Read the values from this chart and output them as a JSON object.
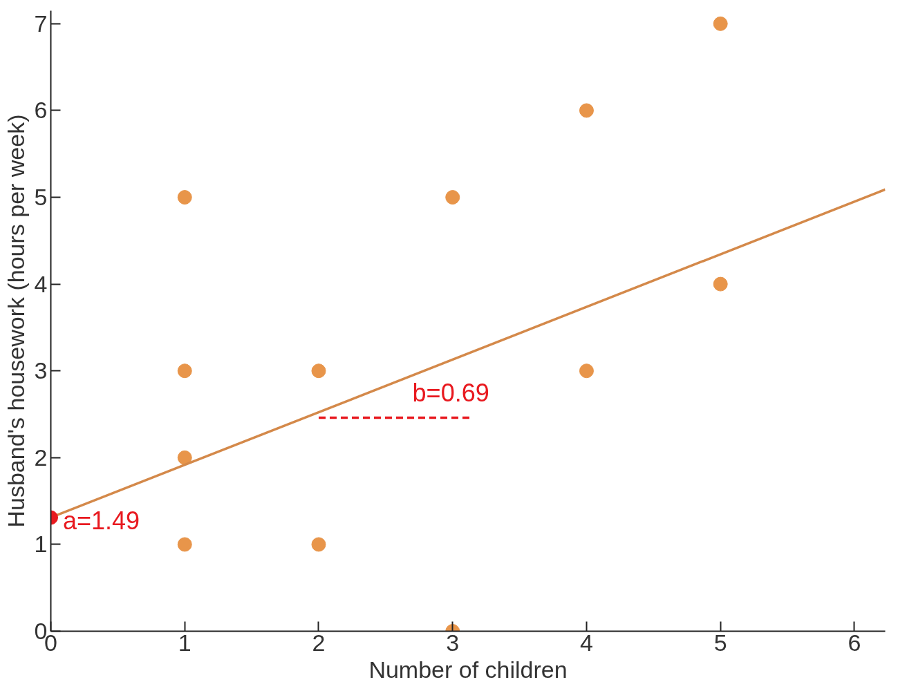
{
  "chart_data": {
    "type": "scatter",
    "xlabel": "Number of children",
    "ylabel": "Husband's housework (hours per week)",
    "xlim": [
      0,
      6.23
    ],
    "ylim": [
      0,
      7.15
    ],
    "xticks": [
      0,
      1,
      2,
      3,
      4,
      5,
      6
    ],
    "yticks": [
      0,
      1,
      2,
      3,
      4,
      5,
      6,
      7
    ],
    "grid": false,
    "series": [
      {
        "marker": "circle",
        "color": "#e8954a",
        "x": [
          1,
          1,
          1,
          1,
          2,
          2,
          3,
          3,
          4,
          4,
          5,
          5
        ],
        "values": [
          5,
          3,
          2,
          1,
          3,
          1,
          5,
          0,
          6,
          3,
          7,
          4
        ]
      },
      {
        "type": "line",
        "color": "#d4894a",
        "x": [
          0,
          6.23
        ],
        "values": [
          1.31,
          5.09
        ]
      },
      {
        "type": "line",
        "color": "#e8191f",
        "line_style": "dashed",
        "x": [
          2,
          3.15
        ],
        "values": [
          2.46,
          2.46
        ]
      },
      {
        "marker": "circle",
        "color": "#e8191f",
        "x": [
          0
        ],
        "values": [
          1.31
        ]
      }
    ],
    "annotations": [
      "a=1.49",
      "b=0.69"
    ]
  }
}
